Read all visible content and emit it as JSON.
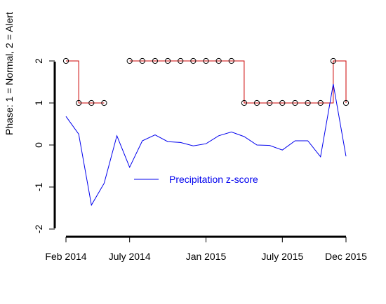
{
  "chart_data": {
    "type": "line",
    "title": "",
    "xlabel": "",
    "ylabel": "Phase: 1 = Normal,  2 = Alert",
    "x": [
      "2014-02",
      "2014-03",
      "2014-04",
      "2014-05",
      "2014-06",
      "2014-07",
      "2014-08",
      "2014-09",
      "2014-10",
      "2014-11",
      "2014-12",
      "2015-01",
      "2015-02",
      "2015-03",
      "2015-04",
      "2015-05",
      "2015-06",
      "2015-07",
      "2015-08",
      "2015-09",
      "2015-10",
      "2015-11",
      "2015-12"
    ],
    "x_ticks": [
      {
        "x": "2014-02",
        "label": "Feb 2014"
      },
      {
        "x": "2014-07",
        "label": "July 2014"
      },
      {
        "x": "2015-01",
        "label": "Jan 2015"
      },
      {
        "x": "2015-07",
        "label": "July 2015"
      },
      {
        "x": "2015-12",
        "label": "Dec 2015"
      }
    ],
    "y_ticks": [
      -2,
      -1,
      0,
      1,
      2
    ],
    "ylim": [
      -2,
      2
    ],
    "series": [
      {
        "name": "",
        "style": "step-with-points",
        "color": "#cc0000",
        "values": [
          2,
          1,
          1,
          1,
          null,
          2,
          2,
          2,
          2,
          2,
          2,
          2,
          2,
          2,
          1,
          1,
          1,
          1,
          1,
          1,
          1,
          2,
          1
        ]
      },
      {
        "name": "Precipitation z-score",
        "style": "line",
        "color": "#0000ee",
        "values": [
          0.68,
          0.26,
          -1.43,
          -0.91,
          0.22,
          -0.53,
          0.1,
          0.24,
          0.08,
          0.06,
          -0.02,
          0.03,
          0.22,
          0.31,
          0.2,
          0.0,
          -0.01,
          -0.12,
          0.1,
          0.1,
          -0.28,
          1.45,
          -0.27
        ]
      }
    ],
    "legend": {
      "position": "center",
      "entries": [
        "Precipitation z-score"
      ]
    }
  }
}
